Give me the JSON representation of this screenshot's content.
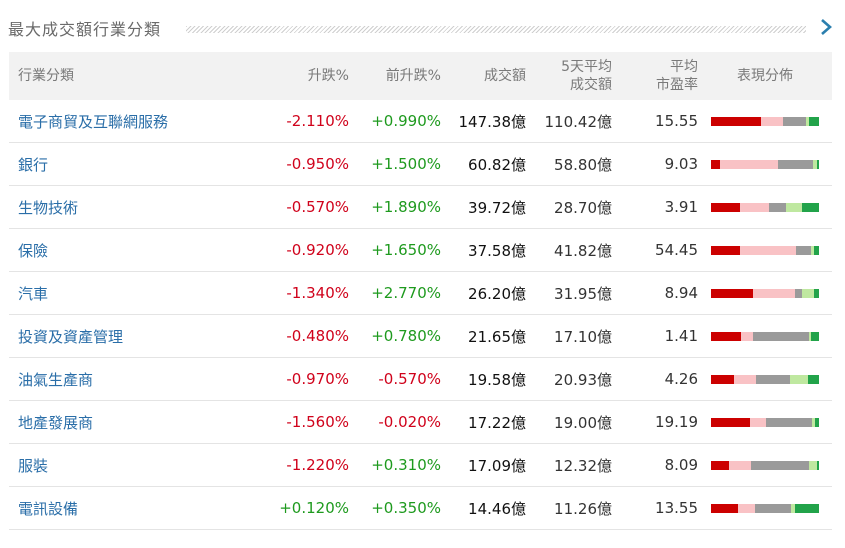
{
  "panel": {
    "title": "最大成交額行業分類"
  },
  "colors": {
    "up": "#1e9a1e",
    "down": "#d0021b",
    "link": "#2a6ea8",
    "dist": [
      "#cc0000",
      "#f9c2c5",
      "#9a9a9a",
      "#bfe8a0",
      "#22a34a"
    ]
  },
  "table": {
    "headers": {
      "industry": "行業分類",
      "change": "升跌%",
      "prev_change": "前升跌%",
      "turnover": "成交額",
      "avg5_line1": "5天平均",
      "avg5_line2": "成交額",
      "pe_line1": "平均",
      "pe_line2": "市盈率",
      "dist": "表現分佈"
    },
    "rows": [
      {
        "industry": "電子商貿及互聯網服務",
        "change": "-2.110%",
        "prev_change": "+0.990%",
        "turnover": "147.38億",
        "avg5": "110.42億",
        "pe": "15.55",
        "dist": [
          46,
          21,
          21,
          3,
          9
        ]
      },
      {
        "industry": "銀行",
        "change": "-0.950%",
        "prev_change": "+1.500%",
        "turnover": "60.82億",
        "avg5": "58.80億",
        "pe": "9.03",
        "dist": [
          9,
          55,
          33,
          4,
          2
        ]
      },
      {
        "industry": "生物技術",
        "change": "-0.570%",
        "prev_change": "+1.890%",
        "turnover": "39.72億",
        "avg5": "28.70億",
        "pe": "3.91",
        "dist": [
          27,
          27,
          15,
          15,
          16
        ]
      },
      {
        "industry": "保險",
        "change": "-0.920%",
        "prev_change": "+1.650%",
        "turnover": "37.58億",
        "avg5": "41.82億",
        "pe": "54.45",
        "dist": [
          27,
          52,
          14,
          2,
          5
        ]
      },
      {
        "industry": "汽車",
        "change": "-1.340%",
        "prev_change": "+2.770%",
        "turnover": "26.20億",
        "avg5": "31.95億",
        "pe": "8.94",
        "dist": [
          39,
          39,
          6,
          11,
          5
        ]
      },
      {
        "industry": "投資及資產管理",
        "change": "-0.480%",
        "prev_change": "+0.780%",
        "turnover": "21.65億",
        "avg5": "17.10億",
        "pe": "1.41",
        "dist": [
          28,
          11,
          52,
          2,
          7
        ]
      },
      {
        "industry": "油氣生產商",
        "change": "-0.970%",
        "prev_change": "-0.570%",
        "turnover": "19.58億",
        "avg5": "20.93億",
        "pe": "4.26",
        "dist": [
          21,
          21,
          31,
          17,
          10
        ]
      },
      {
        "industry": "地產發展商",
        "change": "-1.560%",
        "prev_change": "-0.020%",
        "turnover": "17.22億",
        "avg5": "19.00億",
        "pe": "19.19",
        "dist": [
          35,
          14,
          42,
          2,
          4
        ]
      },
      {
        "industry": "服裝",
        "change": "-1.220%",
        "prev_change": "+0.310%",
        "turnover": "17.09億",
        "avg5": "12.32億",
        "pe": "8.09",
        "dist": [
          17,
          20,
          55,
          7,
          2
        ]
      },
      {
        "industry": "電訊設備",
        "change": "+0.120%",
        "prev_change": "+0.350%",
        "turnover": "14.46億",
        "avg5": "11.26億",
        "pe": "13.55",
        "dist": [
          25,
          16,
          33,
          4,
          22
        ]
      }
    ]
  }
}
